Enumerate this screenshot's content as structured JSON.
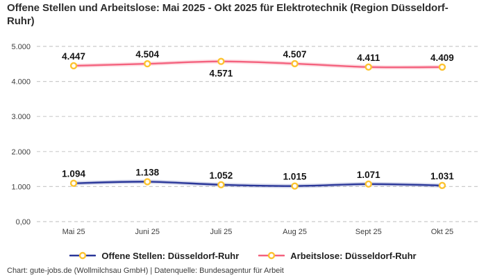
{
  "title": "Offene Stellen und Arbeitslose: Mai 2025 - Okt 2025 für Elektrotechnik (Region Düsseldorf-Ruhr)",
  "footer": "Chart: gute-jobs.de (Wollmilchsau GmbH) | Datenquelle: Bundesagentur für Arbeit",
  "colors": {
    "offene_stellen_line": "#2a3799",
    "arbeitslose_line": "#f4627e",
    "marker_ring": "#fcc330",
    "marker_fill": "#ffffff",
    "gridline": "#cbcbcb",
    "title_text": "#2e2e2e",
    "data_label_text": "#141414"
  },
  "legend": {
    "items": [
      {
        "label": "Offene Stellen: Düsseldorf-Ruhr"
      },
      {
        "label": "Arbeitslose: Düsseldorf-Ruhr"
      }
    ]
  },
  "chart_data": {
    "type": "line",
    "categories": [
      "Mai 25",
      "Juni 25",
      "Juli 25",
      "Aug 25",
      "Sept 25",
      "Okt 25"
    ],
    "series": [
      {
        "name": "Offene Stellen: Düsseldorf-Ruhr",
        "color": "#2a3799",
        "values": [
          1094,
          1138,
          1052,
          1015,
          1071,
          1031
        ],
        "labels": [
          "1.094",
          "1.138",
          "1.052",
          "1.015",
          "1.071",
          "1.031"
        ],
        "label_positions": [
          "above",
          "above",
          "above",
          "above",
          "above",
          "above"
        ]
      },
      {
        "name": "Arbeitslose: Düsseldorf-Ruhr",
        "color": "#f4627e",
        "values": [
          4447,
          4504,
          4571,
          4507,
          4411,
          4409
        ],
        "labels": [
          "4.447",
          "4.504",
          "4.571",
          "4.507",
          "4.411",
          "4.409"
        ],
        "label_positions": [
          "above",
          "above",
          "below",
          "above",
          "above",
          "above"
        ]
      }
    ],
    "y_ticks": [
      {
        "value": 5000,
        "label": "5.000"
      },
      {
        "value": 4000,
        "label": "4.000"
      },
      {
        "value": 3000,
        "label": "3.000"
      },
      {
        "value": 2000,
        "label": "2.000"
      },
      {
        "value": 1000,
        "label": "1.000"
      },
      {
        "value": 0,
        "label": "0,00"
      }
    ],
    "ylim": [
      0,
      5000
    ],
    "grid": "horizontal-dashed",
    "legend_position": "bottom",
    "marker": {
      "shape": "circle",
      "ring_color": "#fcc330",
      "fill": "#ffffff"
    }
  }
}
